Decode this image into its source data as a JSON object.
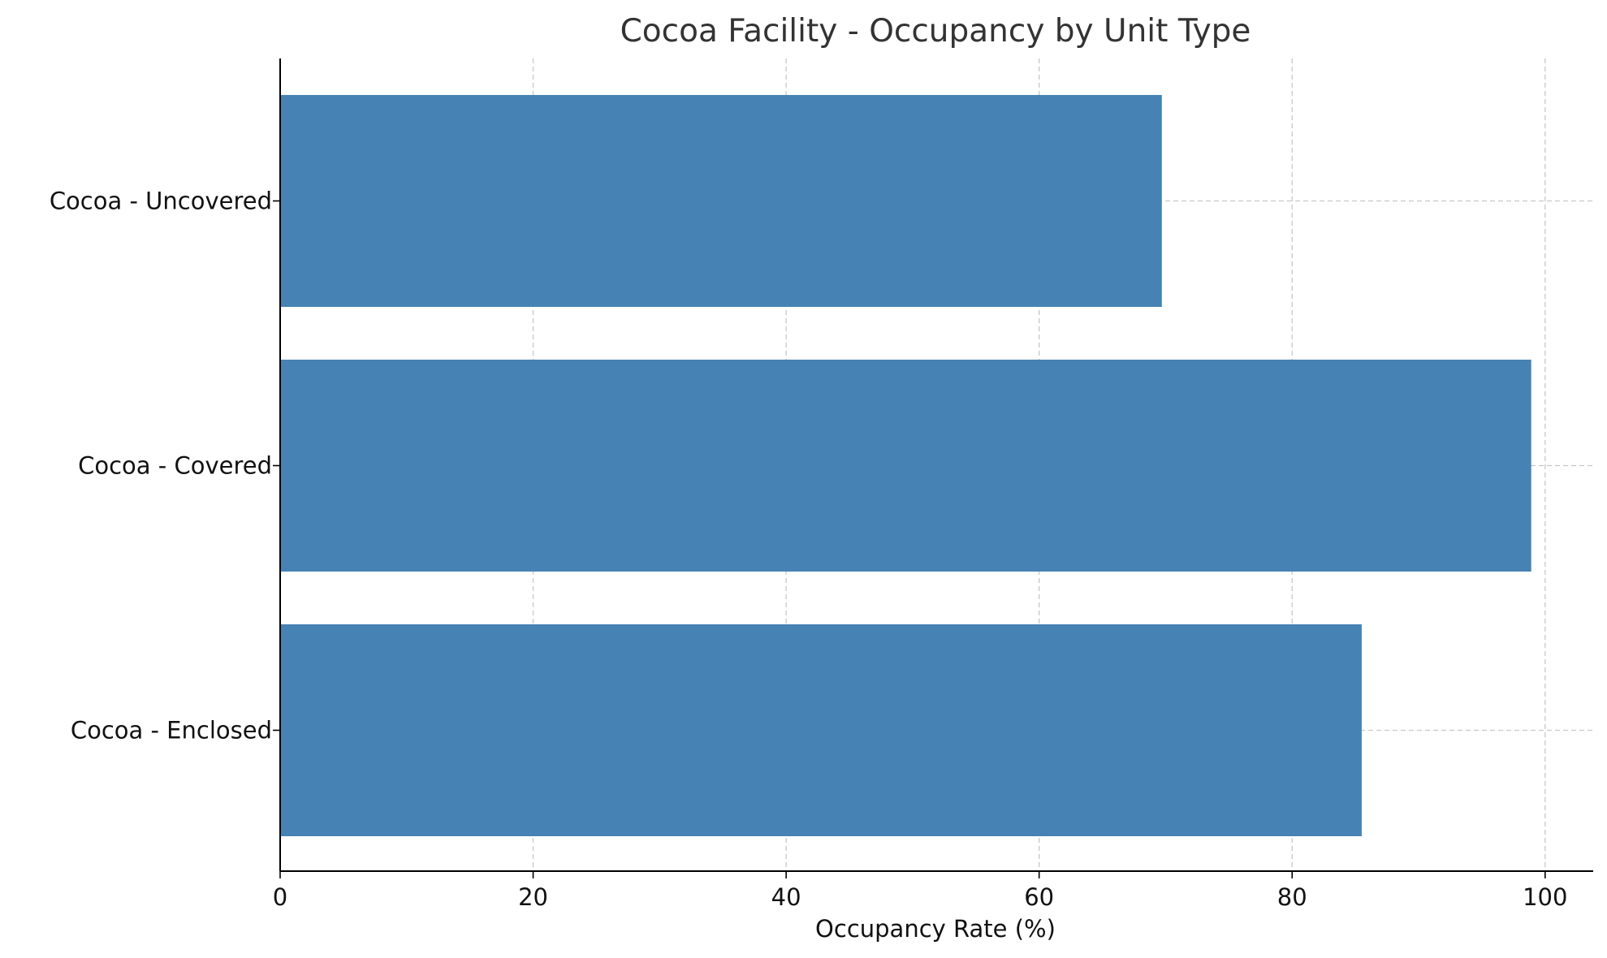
{
  "chart_data": {
    "type": "bar",
    "orientation": "horizontal",
    "title": "Cocoa Facility - Occupancy by Unit Type",
    "xlabel": "Occupancy Rate (%)",
    "ylabel": "",
    "categories": [
      "Cocoa - Enclosed",
      "Cocoa - Covered",
      "Cocoa - Uncovered"
    ],
    "values": [
      85.5,
      98.9,
      69.7
    ],
    "xlim": [
      0,
      103.8
    ],
    "xticks": [
      0,
      20,
      40,
      60,
      80,
      100
    ],
    "grid": true,
    "bar_color": "#4682b4"
  }
}
